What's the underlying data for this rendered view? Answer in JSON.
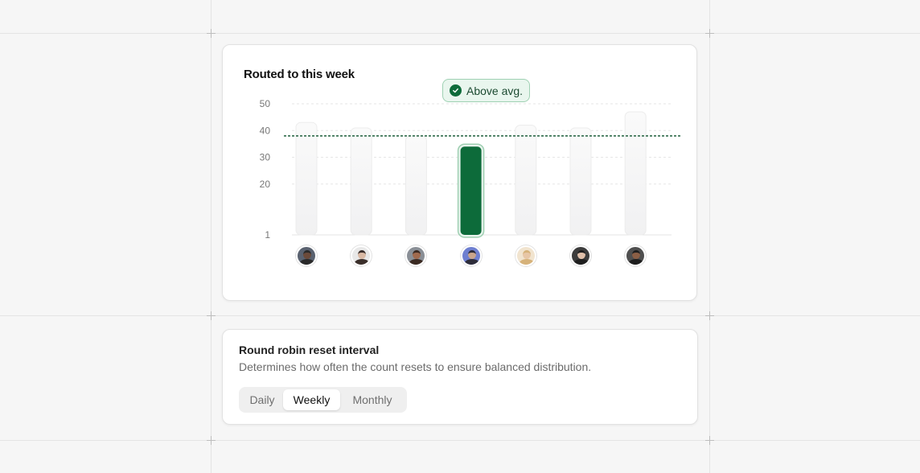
{
  "chart_card": {
    "title": "Routed to this week",
    "badge_label": "Above avg.",
    "badge_icon": "check-circle-icon"
  },
  "chart_data": {
    "type": "bar",
    "title": "Routed to this week",
    "y_ticks": [
      "50",
      "40",
      "30",
      "20",
      "1"
    ],
    "y_tick_values": [
      50,
      40,
      30,
      20,
      1
    ],
    "ylim": [
      1,
      50
    ],
    "values": [
      43,
      41,
      38,
      34,
      42,
      41,
      47
    ],
    "highlight_index": 3,
    "average": 38,
    "grid": true,
    "annotation": "Above avg.",
    "colors": {
      "highlight": "#0d6b3a",
      "bar": "#f1f1f2",
      "average_line": "#2f6b4a"
    }
  },
  "avatars": [
    {
      "name": "avatar-1",
      "skin": "#6b4a3a",
      "hair": "#2a2a2a",
      "bg": "#5a6270"
    },
    {
      "name": "avatar-2",
      "skin": "#d9b9a4",
      "hair": "#3a2e2a",
      "bg": "#e8e8e8"
    },
    {
      "name": "avatar-3",
      "skin": "#a06a4e",
      "hair": "#3b2a22",
      "bg": "#8a8f96"
    },
    {
      "name": "avatar-4",
      "skin": "#c9a58c",
      "hair": "#2d2d3a",
      "bg": "#6e7fd0"
    },
    {
      "name": "avatar-5",
      "skin": "#e7c6a6",
      "hair": "#d6b27a",
      "bg": "#f1e4cf"
    },
    {
      "name": "avatar-6",
      "skin": "#e0c0aa",
      "hair": "#1f1f1f",
      "bg": "#3c3c3c"
    },
    {
      "name": "avatar-7",
      "skin": "#8a5e45",
      "hair": "#1e1e1e",
      "bg": "#4f4f4f"
    }
  ],
  "setting": {
    "title": "Round robin reset interval",
    "description": "Determines how often the count resets to ensure balanced distribution.",
    "options": [
      "Daily",
      "Weekly",
      "Monthly"
    ],
    "selected": "Weekly"
  }
}
